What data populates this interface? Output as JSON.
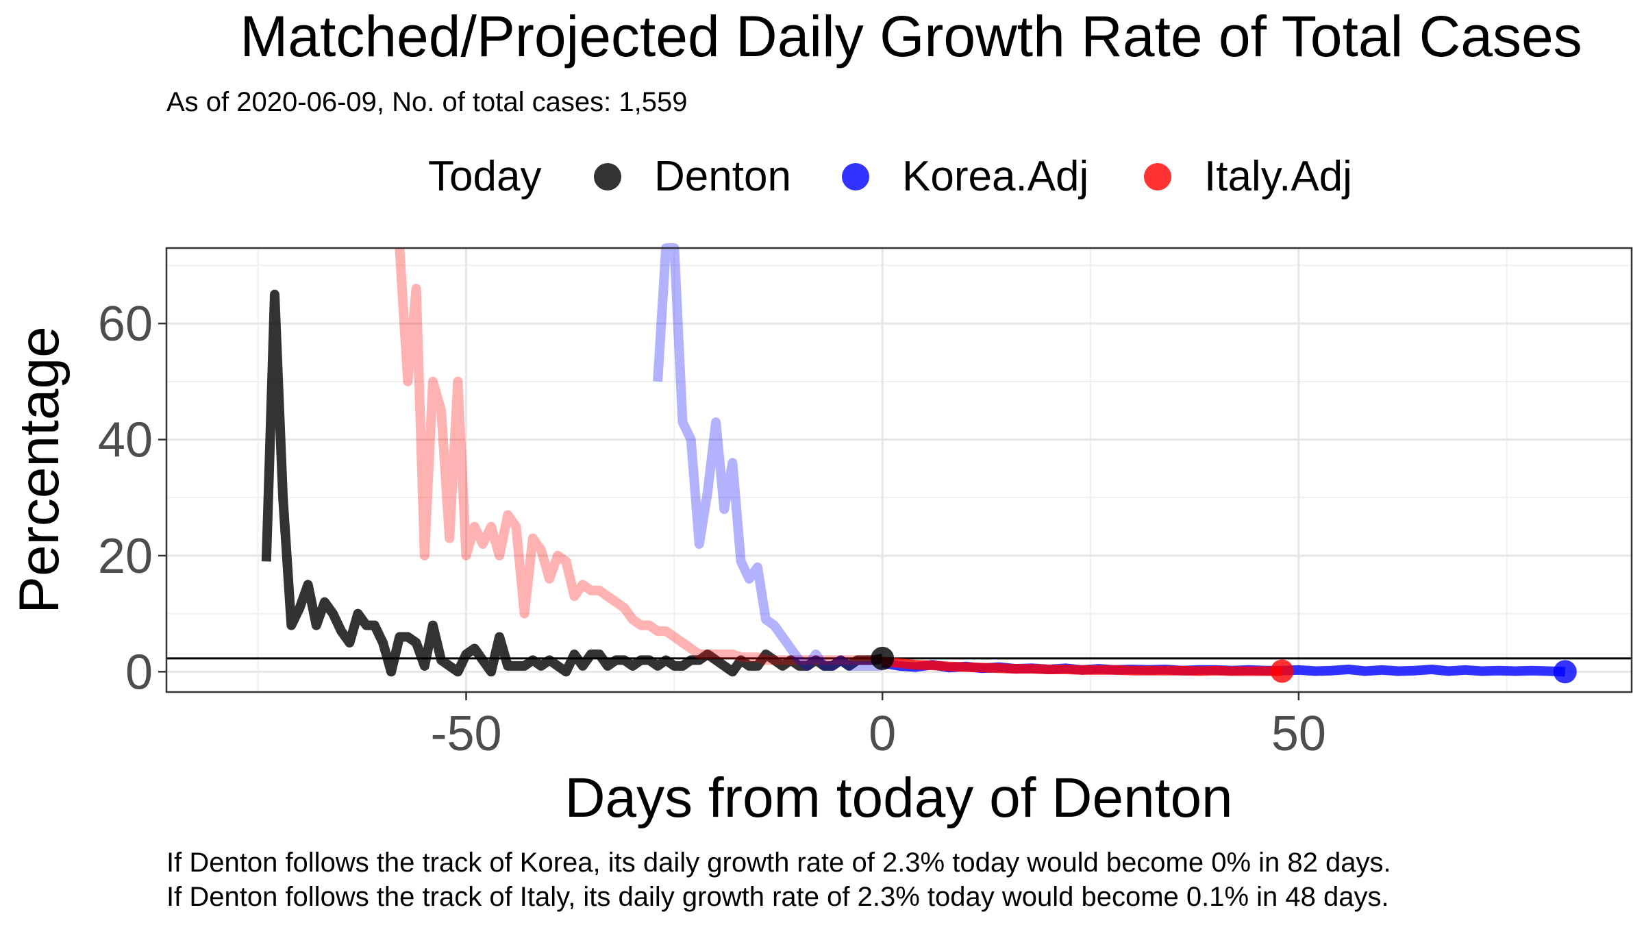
{
  "title": "Matched/Projected Daily Growth Rate of Total Cases",
  "subtitle": "As of 2020-06-09, No. of total cases: 1,559",
  "legend": {
    "title": "Today",
    "items": [
      {
        "label": "Denton",
        "color": "#000000"
      },
      {
        "label": "Korea.Adj",
        "color": "#0000ff"
      },
      {
        "label": "Italy.Adj",
        "color": "#ff0000"
      }
    ]
  },
  "footnote": {
    "line1": "If Denton follows the track of Korea, its daily growth rate of 2.3% today would become 0% in 82 days.",
    "line2": "If Denton follows the track of Italy, its daily growth rate of 2.3% today would become 0.1% in 48 days."
  },
  "chart_data": {
    "type": "line",
    "title": "Matched/Projected Daily Growth Rate of Total Cases",
    "subtitle": "As of 2020-06-09, No. of total cases: 1,559",
    "xlabel": "Days from today of Denton",
    "ylabel": "Percentage",
    "xlim": [
      -86,
      90
    ],
    "ylim": [
      -3.5,
      73
    ],
    "xticks": [
      -50,
      0,
      50
    ],
    "xtick_labels": [
      "-50",
      "0",
      "50"
    ],
    "yticks": [
      0,
      20,
      40,
      60
    ],
    "ytick_labels": [
      "0",
      "20",
      "40",
      "60"
    ],
    "grid": true,
    "legend_position": "top",
    "hline": 2.3,
    "today_markers": [
      {
        "name": "Denton",
        "x": 0,
        "y": 2.3,
        "color": "#000000"
      },
      {
        "name": "Korea.Adj",
        "x": 82,
        "y": 0,
        "color": "#0000ff"
      },
      {
        "name": "Italy.Adj",
        "x": 48,
        "y": 0.1,
        "color": "#ff0000"
      }
    ],
    "series": [
      {
        "name": "Denton",
        "color": "#000000",
        "opacity": 0.8,
        "x": [
          -74,
          -73,
          -72,
          -71,
          -70,
          -69,
          -68,
          -67,
          -66,
          -65,
          -64,
          -63,
          -62,
          -61,
          -60,
          -59,
          -58,
          -57,
          -56,
          -55,
          -54,
          -53,
          -52,
          -51,
          -50,
          -49,
          -48,
          -47,
          -46,
          -45,
          -44,
          -43,
          -42,
          -41,
          -40,
          -39,
          -38,
          -37,
          -36,
          -35,
          -34,
          -33,
          -32,
          -31,
          -30,
          -29,
          -28,
          -27,
          -26,
          -25,
          -24,
          -23,
          -22,
          -21,
          -20,
          -19,
          -18,
          -17,
          -16,
          -15,
          -14,
          -13,
          -12,
          -11,
          -10,
          -9,
          -8,
          -7,
          -6,
          -5,
          -4,
          -3,
          -2,
          -1,
          0
        ],
        "y": [
          19,
          65,
          30,
          8,
          11,
          15,
          8,
          12,
          10,
          7,
          5,
          10,
          8,
          8,
          5,
          0,
          6,
          6,
          5,
          1,
          8,
          2,
          1,
          0,
          3,
          4,
          2,
          0,
          6,
          1,
          1,
          1,
          2,
          1,
          2,
          1,
          0,
          3,
          1,
          3,
          3,
          1,
          2,
          2,
          1,
          2,
          2,
          1,
          2,
          1,
          1,
          2,
          2,
          3,
          2,
          1,
          0,
          2,
          1,
          1,
          3,
          2,
          1,
          2,
          1,
          1,
          2,
          1,
          1,
          2,
          1,
          2,
          2,
          2,
          2.3
        ]
      },
      {
        "name": "Italy.Adj (matched)",
        "color": "#ff0000",
        "opacity": 0.3,
        "x": [
          -58,
          -57,
          -56,
          -55,
          -54,
          -53,
          -52,
          -51,
          -50,
          -49,
          -48,
          -47,
          -46,
          -45,
          -44,
          -43,
          -42,
          -41,
          -40,
          -39,
          -38,
          -37,
          -36,
          -35,
          -34,
          -33,
          -32,
          -31,
          -30,
          -29,
          -28,
          -27,
          -26,
          -25,
          -24,
          -23,
          -22,
          -21,
          -20,
          -19,
          -18,
          -17,
          -16,
          -15,
          -14,
          -13,
          -12,
          -11,
          -10,
          -9,
          -8,
          -7,
          -6,
          -5,
          -4,
          -3,
          -2,
          -1,
          0
        ],
        "y": [
          73,
          50,
          66,
          20,
          50,
          45,
          23,
          50,
          20,
          25,
          22,
          25,
          20,
          27,
          25,
          10,
          23,
          21,
          16,
          20,
          19,
          13,
          15,
          14,
          14,
          13,
          12,
          11,
          9,
          8,
          8,
          7,
          7,
          6,
          5,
          4,
          3,
          3,
          3,
          3,
          3,
          2.5,
          2.5,
          2.5,
          2,
          2,
          2,
          2,
          2,
          2,
          2,
          2,
          2,
          2,
          2,
          2,
          2,
          2,
          2
        ]
      },
      {
        "name": "Korea.Adj (matched)",
        "color": "#0000ff",
        "opacity": 0.3,
        "x": [
          -27,
          -26,
          -25,
          -24,
          -23,
          -22,
          -21,
          -20,
          -19,
          -18,
          -17,
          -16,
          -15,
          -14,
          -13,
          -12,
          -11,
          -10,
          -9,
          -8,
          -7,
          -6,
          -5,
          -4,
          -3,
          -2,
          -1,
          0
        ],
        "y": [
          50,
          73,
          73,
          43,
          40,
          22,
          31,
          43,
          28,
          36,
          19,
          16,
          18,
          9,
          8,
          6,
          4,
          2,
          1,
          3,
          1,
          1,
          2,
          1,
          1,
          1,
          1,
          1
        ]
      },
      {
        "name": "Korea.Adj (projected)",
        "color": "#0000ff",
        "opacity": 0.8,
        "x": [
          0,
          2,
          4,
          6,
          8,
          10,
          12,
          14,
          16,
          18,
          20,
          22,
          24,
          26,
          28,
          30,
          32,
          34,
          36,
          38,
          40,
          42,
          44,
          46,
          48,
          50,
          52,
          54,
          56,
          58,
          60,
          62,
          64,
          66,
          68,
          70,
          72,
          74,
          76,
          78,
          80,
          82
        ],
        "y": [
          1.5,
          1.0,
          0.8,
          1.2,
          0.7,
          0.9,
          0.6,
          0.8,
          0.5,
          0.6,
          0.4,
          0.6,
          0.3,
          0.5,
          0.3,
          0.4,
          0.3,
          0.4,
          0.2,
          0.3,
          0.3,
          0.2,
          0.3,
          0.2,
          0.2,
          0.3,
          0.1,
          0.2,
          0.4,
          0.1,
          0.3,
          0.1,
          0.2,
          0.4,
          0.1,
          0.3,
          0.1,
          0.2,
          0.1,
          0.2,
          0.1,
          0
        ]
      },
      {
        "name": "Italy.Adj (projected)",
        "color": "#ff0000",
        "opacity": 0.8,
        "x": [
          0,
          2,
          4,
          6,
          8,
          10,
          12,
          14,
          16,
          18,
          20,
          22,
          24,
          26,
          28,
          30,
          32,
          34,
          36,
          38,
          40,
          42,
          44,
          46,
          48
        ],
        "y": [
          1.8,
          1.5,
          1.2,
          1.1,
          0.9,
          0.8,
          0.7,
          0.6,
          0.5,
          0.5,
          0.4,
          0.4,
          0.3,
          0.3,
          0.3,
          0.2,
          0.2,
          0.2,
          0.2,
          0.1,
          0.2,
          0.1,
          0.1,
          0.1,
          0.1
        ]
      }
    ]
  }
}
